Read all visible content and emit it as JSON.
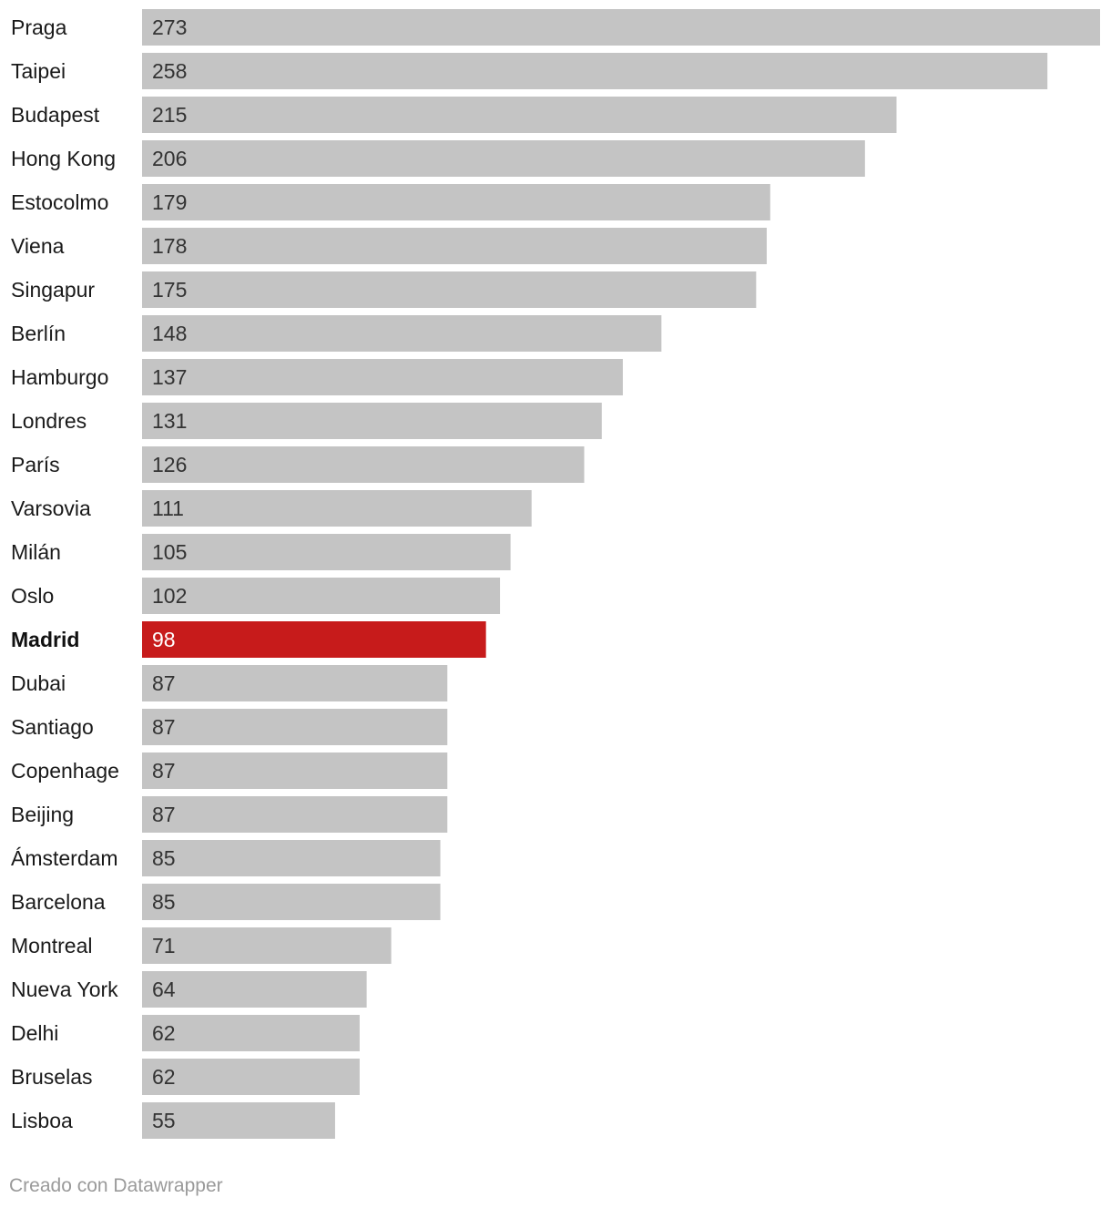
{
  "chart_data": {
    "type": "bar",
    "orientation": "horizontal",
    "categories": [
      "Praga",
      "Taipei",
      "Budapest",
      "Hong Kong",
      "Estocolmo",
      "Viena",
      "Singapur",
      "Berlín",
      "Hamburgo",
      "Londres",
      "París",
      "Varsovia",
      "Milán",
      "Oslo",
      "Madrid",
      "Dubai",
      "Santiago",
      "Copenhage",
      "Beijing",
      "Ámsterdam",
      "Barcelona",
      "Montreal",
      "Nueva York",
      "Delhi",
      "Bruselas",
      "Lisboa"
    ],
    "values": [
      273,
      258,
      215,
      206,
      179,
      178,
      175,
      148,
      137,
      131,
      126,
      111,
      105,
      102,
      98,
      87,
      87,
      87,
      87,
      85,
      85,
      71,
      64,
      62,
      62,
      55
    ],
    "highlight": "Madrid",
    "title": "",
    "xlabel": "",
    "ylabel": "",
    "xlim": [
      0,
      273
    ],
    "grid": false,
    "colors": {
      "bar": "#c4c4c4",
      "highlight": "#c71b1b"
    }
  },
  "footer": {
    "credit": "Creado con Datawrapper"
  }
}
